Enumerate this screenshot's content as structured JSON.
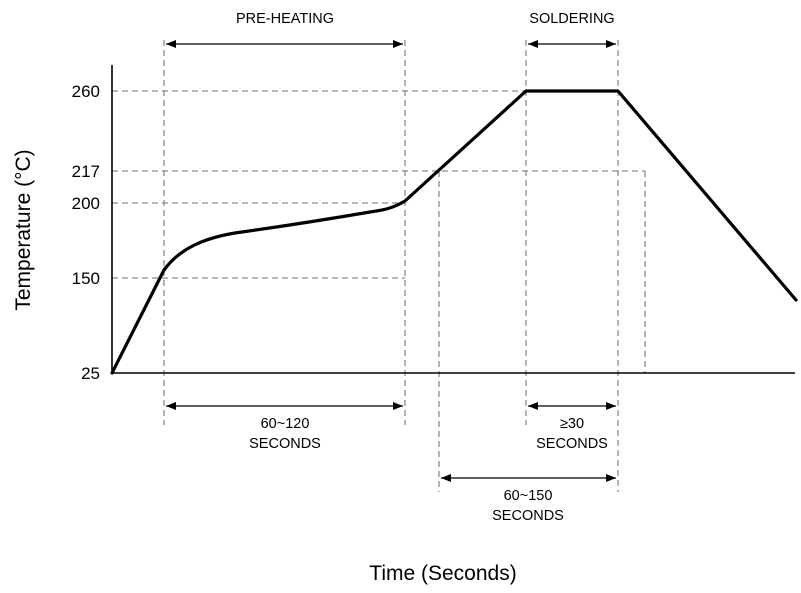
{
  "chart_data": {
    "type": "line",
    "title": "",
    "xlabel": "Time (Seconds)",
    "ylabel": "Temperature (°C)",
    "y_ticks": [
      "25",
      "150",
      "200",
      "217",
      "260"
    ],
    "y_tick_values": [
      25,
      150,
      200,
      217,
      260
    ],
    "grid": false,
    "series": [
      {
        "name": "",
        "profile_points": [
          {
            "x": 0,
            "y": 25
          },
          {
            "x": 50,
            "y": 150
          },
          {
            "x": 120,
            "y": 176
          },
          {
            "x": 250,
            "y": 192
          },
          {
            "x": 290,
            "y": 200
          },
          {
            "x": 325,
            "y": 217
          },
          {
            "x": 410,
            "y": 260
          },
          {
            "x": 500,
            "y": 260
          },
          {
            "x": 670,
            "y": 140
          }
        ]
      }
    ],
    "phase_labels": {
      "preheating": "PRE-HEATING",
      "soldering": "SOLDERING"
    },
    "dimension_labels": {
      "preheat_line1": "60~120",
      "preheat_line2": "SECONDS",
      "soldering_line1": "≥30",
      "soldering_line2": "SECONDS",
      "above217_line1": "60~150",
      "above217_line2": "SECONDS"
    }
  }
}
